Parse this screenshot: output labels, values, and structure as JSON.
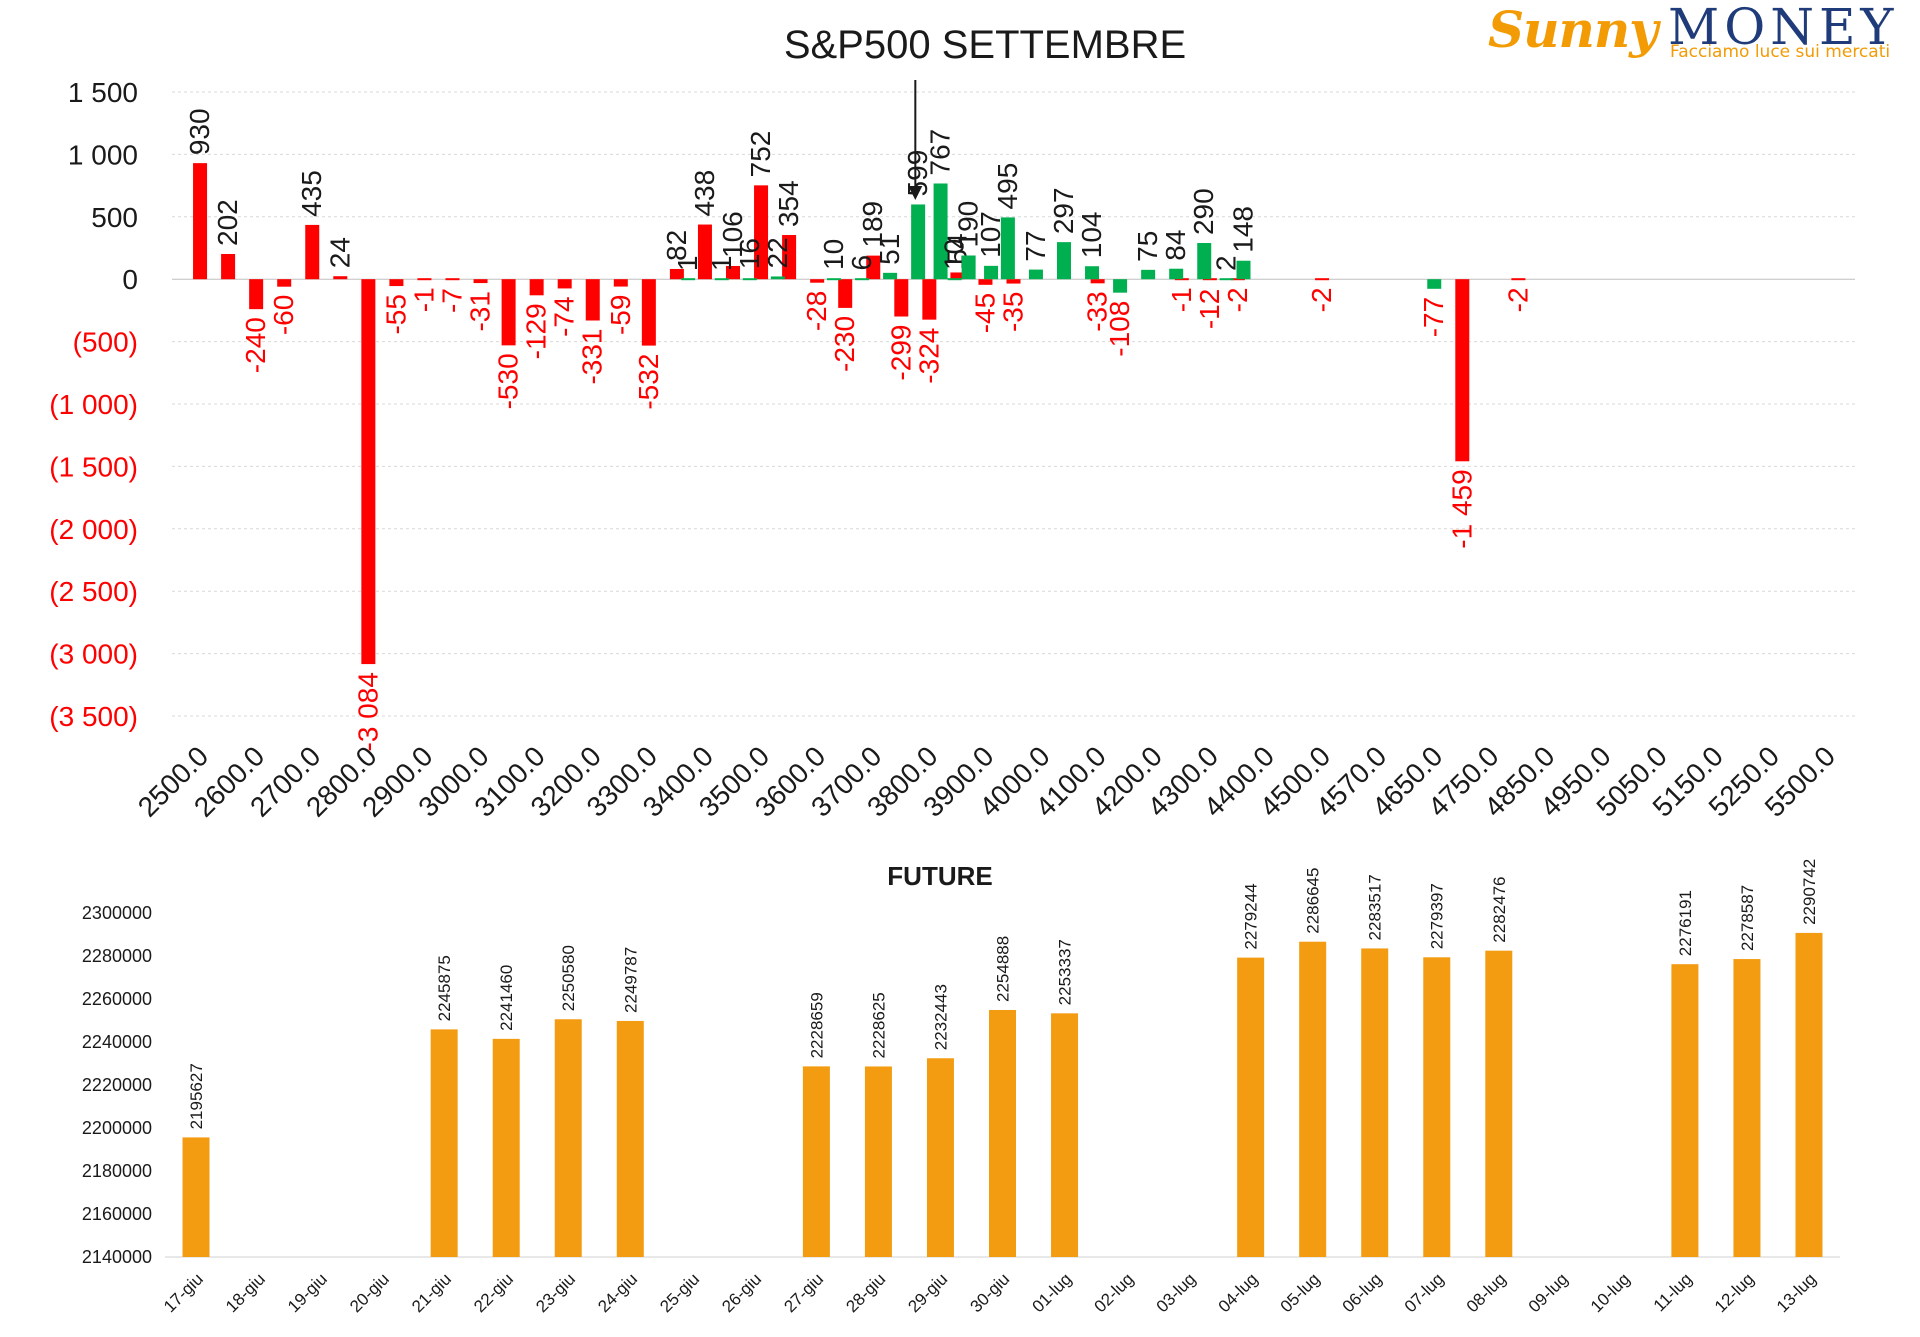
{
  "logo": {
    "brand_left": "Sunny",
    "brand_right": "MONEY",
    "tagline": "Facciamo luce sui mercati",
    "colors": {
      "orange": "#f29b05",
      "navy": "#1f3b79"
    }
  },
  "colors": {
    "positive": "#00b050",
    "negative": "#ff0000",
    "future": "#f39c12",
    "grid": "#d9d9d9"
  },
  "chart_data": [
    {
      "type": "bar",
      "title": "S&P500 SETTEMBRE",
      "xlabel": "",
      "ylabel": "",
      "ylim": [
        -3500,
        1500
      ],
      "y_ticks": [
        {
          "v": 1500,
          "label": "1 500"
        },
        {
          "v": 1000,
          "label": "1 000"
        },
        {
          "v": 500,
          "label": "500"
        },
        {
          "v": 0,
          "label": "0"
        },
        {
          "v": -500,
          "label": "(500)"
        },
        {
          "v": -1000,
          "label": "(1 000)"
        },
        {
          "v": -1500,
          "label": "(1 500)"
        },
        {
          "v": -2000,
          "label": "(2 000)"
        },
        {
          "v": -2500,
          "label": "(2 500)"
        },
        {
          "v": -3000,
          "label": "(3 000)"
        },
        {
          "v": -3500,
          "label": "(3 500)"
        }
      ],
      "x_ticks": [
        "2500.0",
        "2600.0",
        "2700.0",
        "2800.0",
        "2900.0",
        "3000.0",
        "3100.0",
        "3200.0",
        "3300.0",
        "3400.0",
        "3500.0",
        "3600.0",
        "3700.0",
        "3800.0",
        "3900.0",
        "4000.0",
        "4100.0",
        "4200.0",
        "4300.0",
        "4400.0",
        "4500.0",
        "4570.0",
        "4650.0",
        "4750.0",
        "4850.0",
        "4950.0",
        "5050.0",
        "5150.0",
        "5250.0",
        "5500.0"
      ],
      "grid": true,
      "legend": "none",
      "arrow_annotation": {
        "at_tick": 12.75
      },
      "series": [
        {
          "color_key": "negative",
          "points": [
            {
              "x": 0.0,
              "value": 930,
              "label": "930"
            },
            {
              "x": 0.5,
              "value": 202,
              "label": "202"
            },
            {
              "x": 1.0,
              "value": -240,
              "label": "-240"
            },
            {
              "x": 1.5,
              "value": -60,
              "label": "-60"
            },
            {
              "x": 2.0,
              "value": 435,
              "label": "435"
            },
            {
              "x": 2.5,
              "value": 24,
              "label": "24"
            },
            {
              "x": 3.0,
              "value": -3084,
              "label": "-3 084"
            },
            {
              "x": 3.5,
              "value": -55,
              "label": "-55"
            },
            {
              "x": 4.0,
              "value": -1,
              "label": "-1"
            },
            {
              "x": 4.5,
              "value": -7,
              "label": "-7"
            },
            {
              "x": 5.0,
              "value": -31,
              "label": "-31"
            },
            {
              "x": 5.5,
              "value": -530,
              "label": "-530"
            },
            {
              "x": 6.0,
              "value": -129,
              "label": "-129"
            },
            {
              "x": 6.5,
              "value": -74,
              "label": "-74"
            },
            {
              "x": 7.0,
              "value": -331,
              "label": "-331"
            },
            {
              "x": 7.5,
              "value": -59,
              "label": "-59"
            },
            {
              "x": 8.0,
              "value": -532,
              "label": "-532"
            },
            {
              "x": 8.5,
              "value": 82,
              "label": "82"
            },
            {
              "x": 9.0,
              "value": 438,
              "label": "438"
            },
            {
              "x": 9.5,
              "value": 106,
              "label": "106"
            },
            {
              "x": 10.0,
              "value": 752,
              "label": "752"
            },
            {
              "x": 10.5,
              "value": 354,
              "label": "354"
            },
            {
              "x": 11.0,
              "value": -28,
              "label": "-28"
            },
            {
              "x": 11.5,
              "value": -230,
              "label": "-230"
            },
            {
              "x": 12.0,
              "value": 189,
              "label": "189"
            },
            {
              "x": 12.5,
              "value": -299,
              "label": "-299"
            },
            {
              "x": 13.0,
              "value": -324,
              "label": "-324"
            },
            {
              "x": 13.5,
              "value": 54,
              "label": "54"
            },
            {
              "x": 14.0,
              "value": -45,
              "label": "-45"
            },
            {
              "x": 14.5,
              "value": -35,
              "label": "-35"
            },
            {
              "x": 16.0,
              "value": -33,
              "label": "-33"
            },
            {
              "x": 17.5,
              "value": -1,
              "label": "-1"
            },
            {
              "x": 18.0,
              "value": -12,
              "label": "-12"
            },
            {
              "x": 18.5,
              "value": -2,
              "label": "-2"
            },
            {
              "x": 20.0,
              "value": -2,
              "label": "-2"
            },
            {
              "x": 22.5,
              "value": -1459,
              "label": "-1 459"
            },
            {
              "x": 23.5,
              "value": -2,
              "label": "-2"
            }
          ]
        },
        {
          "color_key": "positive",
          "points": [
            {
              "x": 8.7,
              "value": 1,
              "label": "1"
            },
            {
              "x": 9.3,
              "value": 1,
              "label": "1"
            },
            {
              "x": 9.8,
              "value": 16,
              "label": "16"
            },
            {
              "x": 10.3,
              "value": 22,
              "label": "22"
            },
            {
              "x": 11.3,
              "value": 10,
              "label": "10"
            },
            {
              "x": 11.8,
              "value": 6,
              "label": "6"
            },
            {
              "x": 12.3,
              "value": 51,
              "label": "51"
            },
            {
              "x": 12.8,
              "value": 599,
              "label": "599"
            },
            {
              "x": 13.2,
              "value": 767,
              "label": "767"
            },
            {
              "x": 13.45,
              "value": 10,
              "label": "10"
            },
            {
              "x": 13.7,
              "value": 190,
              "label": "190"
            },
            {
              "x": 14.1,
              "value": 107,
              "label": "107"
            },
            {
              "x": 14.4,
              "value": 495,
              "label": "495"
            },
            {
              "x": 14.9,
              "value": 77,
              "label": "77"
            },
            {
              "x": 15.4,
              "value": 297,
              "label": "297"
            },
            {
              "x": 15.9,
              "value": 104,
              "label": "104"
            },
            {
              "x": 16.4,
              "value": -108,
              "label": "-108"
            },
            {
              "x": 16.9,
              "value": 75,
              "label": "75"
            },
            {
              "x": 17.4,
              "value": 84,
              "label": "84"
            },
            {
              "x": 17.9,
              "value": 290,
              "label": "290"
            },
            {
              "x": 18.3,
              "value": 2,
              "label": "2"
            },
            {
              "x": 18.6,
              "value": 148,
              "label": "148"
            },
            {
              "x": 22.0,
              "value": -77,
              "label": "-77"
            }
          ]
        }
      ]
    },
    {
      "type": "bar",
      "title": "FUTURE",
      "xlabel": "",
      "ylabel": "",
      "ylim": [
        2140000,
        2300000
      ],
      "y_ticks": [
        "2300000",
        "2280000",
        "2260000",
        "2240000",
        "2220000",
        "2200000",
        "2180000",
        "2160000",
        "2140000"
      ],
      "categories": [
        "17-giu",
        "18-giu",
        "19-giu",
        "20-giu",
        "21-giu",
        "22-giu",
        "23-giu",
        "24-giu",
        "25-giu",
        "26-giu",
        "27-giu",
        "28-giu",
        "29-giu",
        "30-giu",
        "01-lug",
        "02-lug",
        "03-lug",
        "04-lug",
        "05-lug",
        "06-lug",
        "07-lug",
        "08-lug",
        "09-lug",
        "10-lug",
        "11-lug",
        "12-lug",
        "13-lug"
      ],
      "values": [
        2195627,
        null,
        null,
        null,
        2245875,
        2241460,
        2250580,
        2249787,
        null,
        null,
        2228659,
        2228625,
        2232443,
        2254888,
        2253337,
        null,
        null,
        2279244,
        2286645,
        2283517,
        2279397,
        2282476,
        null,
        null,
        2276191,
        2278587,
        2290742
      ],
      "value_labels": [
        "2195627",
        "",
        "",
        "",
        "2245875",
        "2241460",
        "2250580",
        "2249787",
        "",
        "",
        "2228659",
        "2228625",
        "2232443",
        "2254888",
        "2253337",
        "",
        "",
        "2279244",
        "2286645",
        "2283517",
        "2279397",
        "2282476",
        "",
        "",
        "2276191",
        "2278587",
        "2290742"
      ],
      "grid": false,
      "legend": "none"
    }
  ]
}
